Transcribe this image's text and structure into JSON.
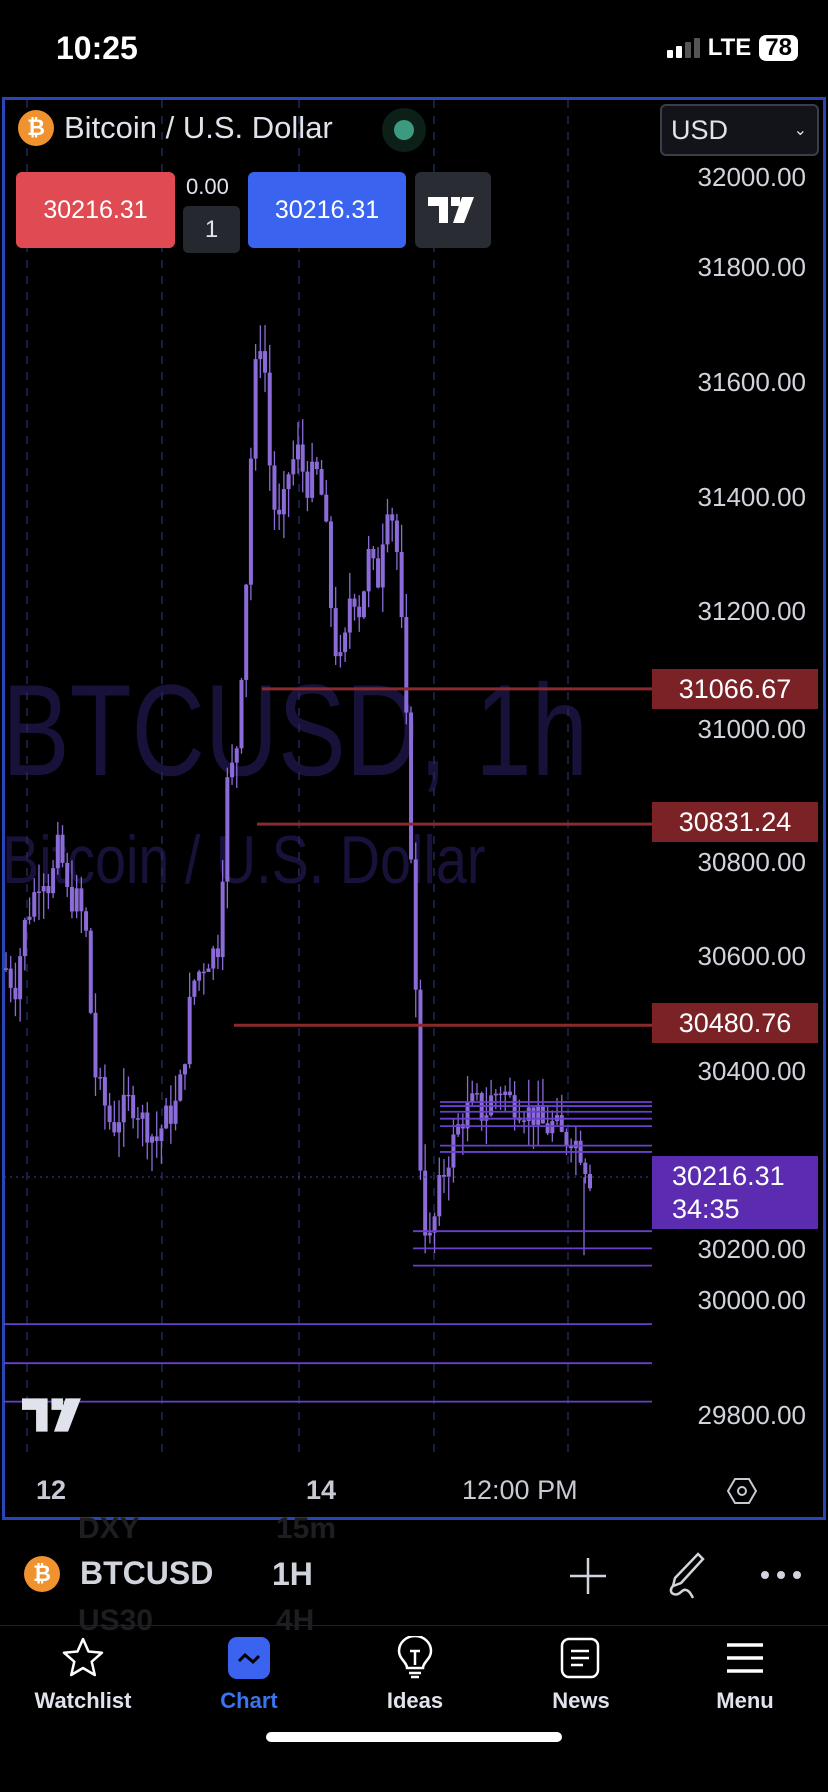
{
  "status_bar": {
    "time": "10:25",
    "network": "LTE",
    "battery": "78"
  },
  "header": {
    "title": "Bitcoin / U.S. Dollar",
    "coin_symbol": "₿",
    "currency": "USD"
  },
  "trade_panel": {
    "sell_price": "30216.31",
    "spread": "0.00",
    "quantity": "1",
    "buy_price": "30216.31"
  },
  "watermark": {
    "line1": "BTCUSD, 1h",
    "line2": "Bitcoin / U.S. Dollar"
  },
  "price_axis": {
    "labels": [
      "32000.00",
      "31800.00",
      "31600.00",
      "31400.00",
      "31200.00",
      "31000.00",
      "30800.00",
      "30600.00",
      "30400.00",
      "30200.00",
      "30000.00",
      "29800.00"
    ]
  },
  "horizontal_levels": {
    "red": [
      "31066.67",
      "30831.24",
      "30480.76"
    ],
    "current_price": "30216.31",
    "countdown": "34:35"
  },
  "time_axis": {
    "labels": [
      "12",
      "14",
      "12:00 PM"
    ]
  },
  "chart_data": {
    "type": "candlestick",
    "ylim": [
      29750,
      32050
    ],
    "price_path": [
      30580,
      30540,
      30650,
      30700,
      30750,
      30720,
      30800,
      30700,
      30700,
      30650,
      30400,
      30350,
      30300,
      30330,
      30350,
      30330,
      30300,
      30280,
      30320,
      30330,
      30400,
      30550,
      30580,
      30600,
      30620,
      30900,
      30950,
      31200,
      31600,
      31700,
      31400,
      31350,
      31450,
      31480,
      31420,
      31450,
      31380,
      31150,
      31100,
      31250,
      31200,
      31300,
      31250,
      31400,
      31350,
      31100,
      30700,
      30150,
      30100,
      30200,
      30250,
      30300,
      30330,
      30350,
      30320,
      30360,
      30370,
      30350,
      30340,
      30330,
      30320,
      30300,
      30310,
      30280,
      30290,
      30260,
      30216
    ],
    "purple_levels": [
      30347,
      30340,
      30330,
      30318,
      30305,
      30271,
      30260,
      30122,
      30092,
      30062,
      29960,
      29892,
      29825
    ],
    "colors": {
      "candle": "#8b6bd8",
      "red_level": "#7a2226",
      "purple_level": "#6a3fd0",
      "grid": "#1c2a55"
    }
  },
  "bottom_bar": {
    "symbol": "BTCUSD",
    "interval": "1H",
    "ghost_above": [
      "DXY",
      "15m"
    ],
    "ghost_below": [
      "US30",
      "4H"
    ]
  },
  "tabs": [
    {
      "label": "Watchlist",
      "icon": "star-icon"
    },
    {
      "label": "Chart",
      "icon": "chart-icon",
      "active": true
    },
    {
      "label": "Ideas",
      "icon": "lightbulb-icon"
    },
    {
      "label": "News",
      "icon": "news-icon"
    },
    {
      "label": "Menu",
      "icon": "menu-icon"
    }
  ]
}
